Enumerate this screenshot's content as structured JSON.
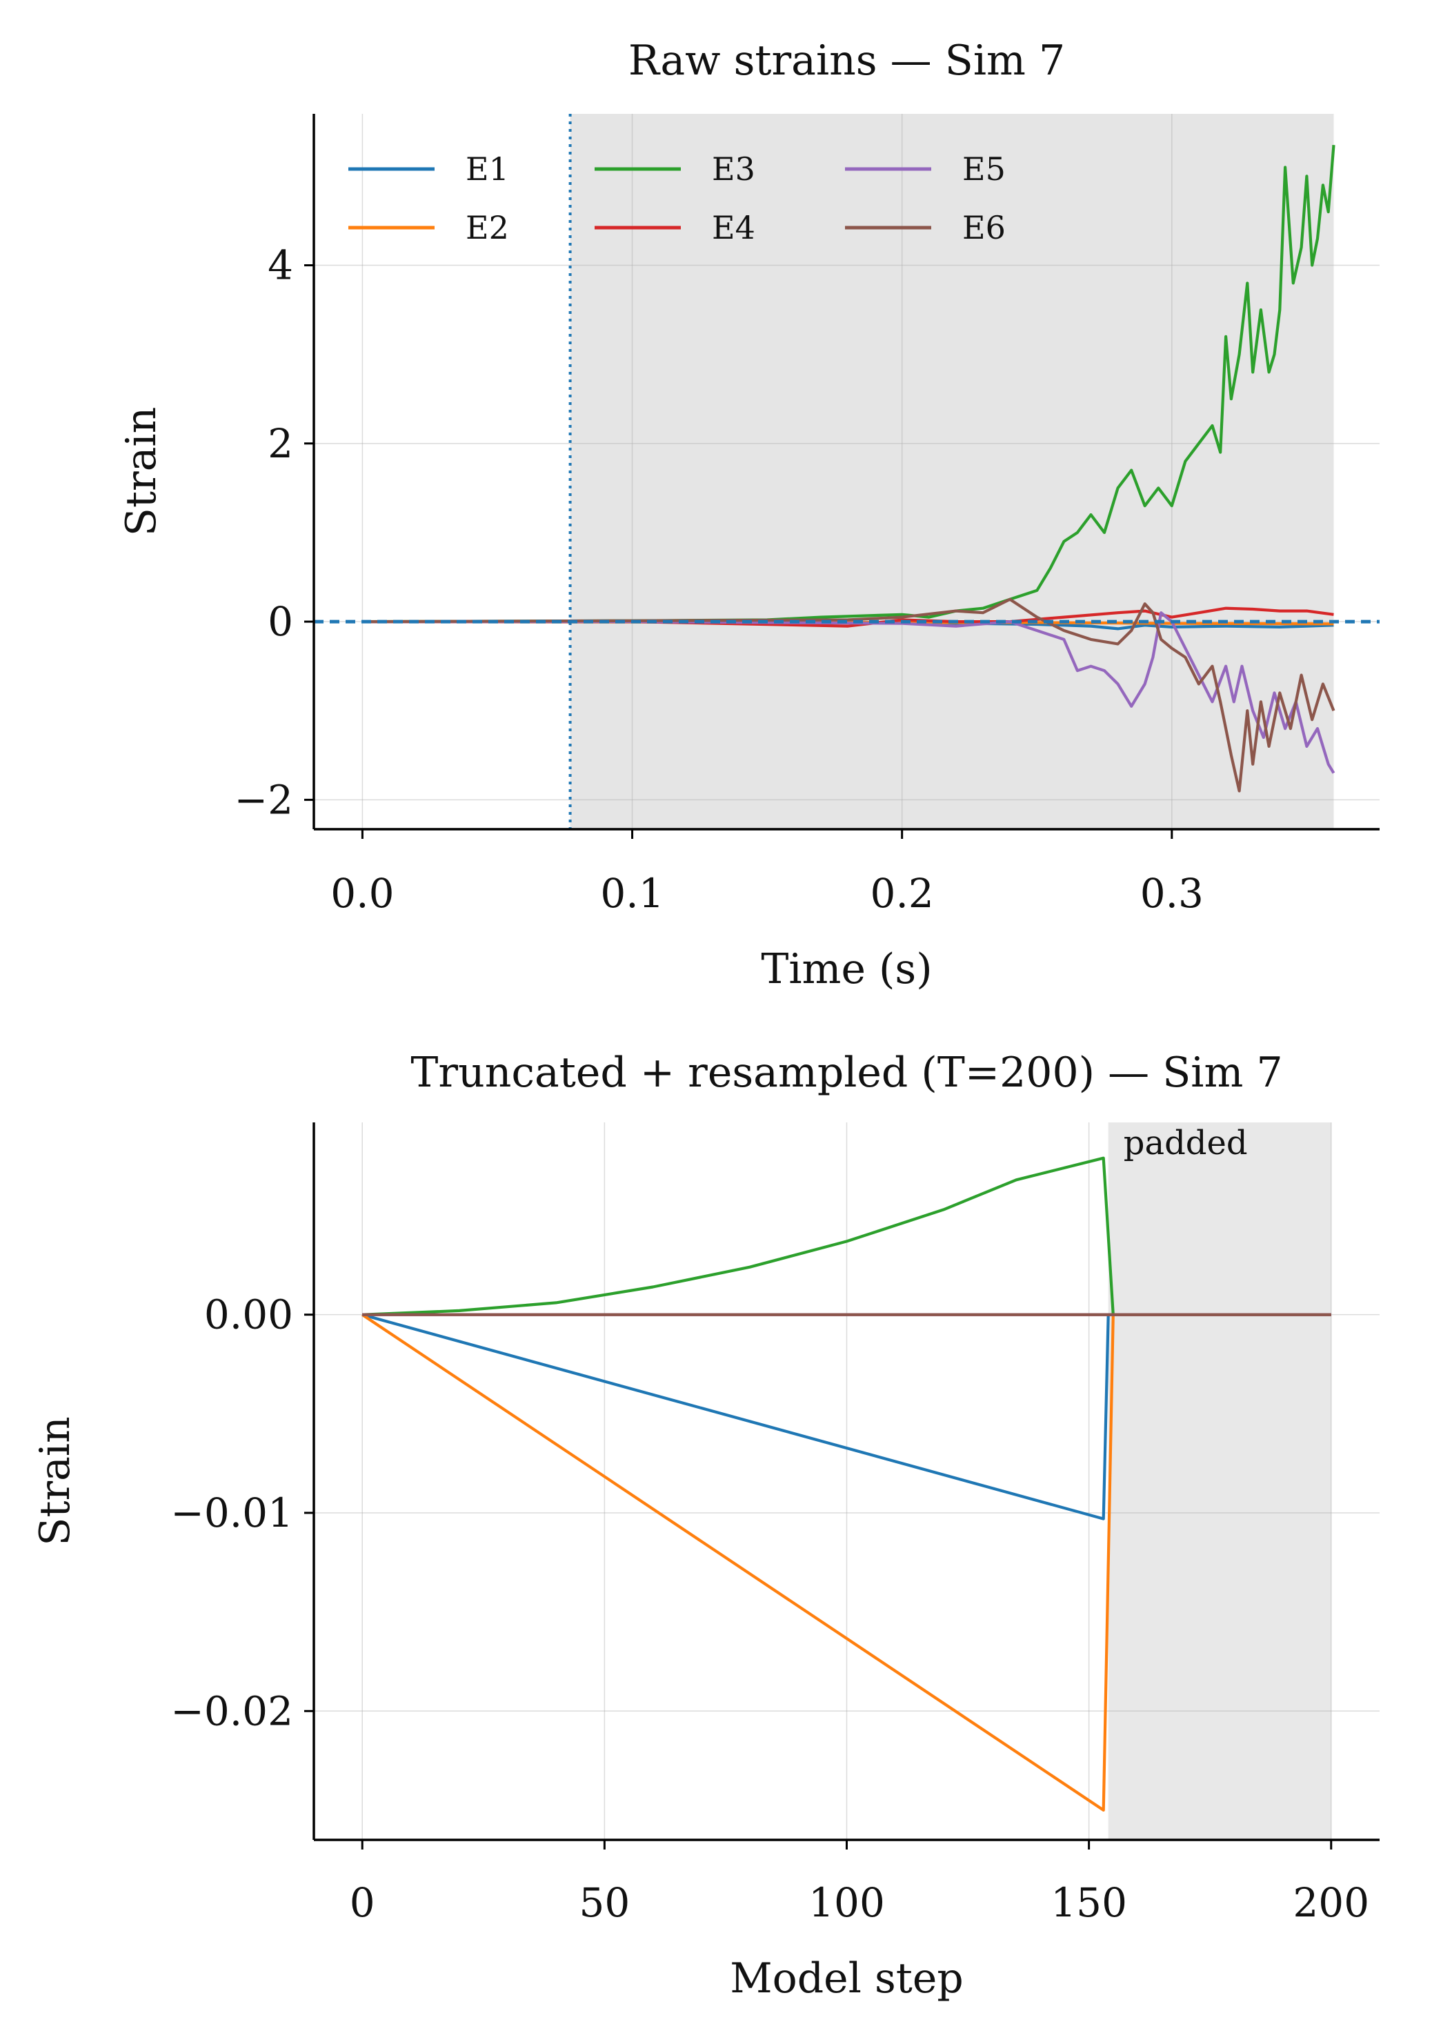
{
  "chart_data": [
    {
      "type": "line",
      "title": "Raw strains — Sim 7",
      "xlabel": "Time (s)",
      "ylabel": "Strain",
      "xlim": [
        -0.018,
        0.377
      ],
      "ylim": [
        -2.33,
        5.7
      ],
      "xticks": [
        0.0,
        0.1,
        0.2,
        0.3
      ],
      "xtick_labels": [
        "0.0",
        "0.1",
        "0.2",
        "0.3"
      ],
      "yticks": [
        -2,
        0,
        2,
        4
      ],
      "ytick_labels": [
        "−2",
        "0",
        "2",
        "4"
      ],
      "grid": true,
      "legend_position": "upper-left",
      "legend_columns": 3,
      "shaded_region": {
        "x": [
          0.077,
          0.36
        ],
        "color": "#e5e5e5"
      },
      "vertical_marker": {
        "x": 0.077,
        "style": "dotted",
        "color": "#1f77b4"
      },
      "horizontal_marker": {
        "y": 0,
        "style": "dashed",
        "color": "#1f77b4"
      },
      "series": [
        {
          "name": "E1",
          "color": "#1f77b4",
          "x": [
            0,
            0.1,
            0.2,
            0.25,
            0.27,
            0.28,
            0.29,
            0.3,
            0.32,
            0.34,
            0.36
          ],
          "y": [
            0,
            -0.002,
            -0.01,
            -0.03,
            -0.05,
            -0.08,
            -0.04,
            -0.06,
            -0.05,
            -0.06,
            -0.04
          ]
        },
        {
          "name": "E2",
          "color": "#ff7f0e",
          "x": [
            0,
            0.1,
            0.2,
            0.25,
            0.3,
            0.36
          ],
          "y": [
            0,
            -0.005,
            -0.01,
            -0.01,
            -0.02,
            -0.025
          ]
        },
        {
          "name": "E3",
          "color": "#2ca02c",
          "x": [
            0,
            0.1,
            0.15,
            0.17,
            0.2,
            0.21,
            0.22,
            0.23,
            0.24,
            0.25,
            0.255,
            0.26,
            0.265,
            0.27,
            0.275,
            0.28,
            0.285,
            0.29,
            0.295,
            0.3,
            0.305,
            0.31,
            0.315,
            0.318,
            0.32,
            0.322,
            0.325,
            0.328,
            0.33,
            0.333,
            0.336,
            0.338,
            0.34,
            0.342,
            0.345,
            0.348,
            0.35,
            0.352,
            0.354,
            0.356,
            0.358,
            0.36
          ],
          "y": [
            0,
            0.01,
            0.02,
            0.05,
            0.08,
            0.05,
            0.12,
            0.15,
            0.25,
            0.35,
            0.6,
            0.9,
            1.0,
            1.2,
            1.0,
            1.5,
            1.7,
            1.3,
            1.5,
            1.3,
            1.8,
            2.0,
            2.2,
            1.9,
            3.2,
            2.5,
            3.0,
            3.8,
            2.8,
            3.5,
            2.8,
            3.0,
            3.5,
            5.1,
            3.8,
            4.2,
            5.0,
            4.0,
            4.3,
            4.9,
            4.6,
            5.35
          ]
        },
        {
          "name": "E4",
          "color": "#d62728",
          "x": [
            0,
            0.1,
            0.18,
            0.2,
            0.22,
            0.24,
            0.26,
            0.28,
            0.29,
            0.3,
            0.31,
            0.32,
            0.33,
            0.34,
            0.35,
            0.36
          ],
          "y": [
            0,
            0.0,
            -0.05,
            0.02,
            0.0,
            0.0,
            0.05,
            0.1,
            0.12,
            0.05,
            0.1,
            0.15,
            0.14,
            0.12,
            0.12,
            0.08
          ]
        },
        {
          "name": "E5",
          "color": "#9467bd",
          "x": [
            0,
            0.1,
            0.2,
            0.22,
            0.24,
            0.25,
            0.26,
            0.265,
            0.27,
            0.275,
            0.28,
            0.285,
            0.29,
            0.293,
            0.296,
            0.3,
            0.305,
            0.31,
            0.315,
            0.32,
            0.323,
            0.326,
            0.33,
            0.334,
            0.338,
            0.342,
            0.346,
            0.35,
            0.354,
            0.358,
            0.36
          ],
          "y": [
            0,
            0.0,
            -0.02,
            -0.05,
            0.0,
            -0.1,
            -0.2,
            -0.55,
            -0.5,
            -0.55,
            -0.7,
            -0.95,
            -0.7,
            -0.4,
            0.1,
            0.0,
            -0.3,
            -0.6,
            -0.9,
            -0.5,
            -0.9,
            -0.5,
            -1.0,
            -1.3,
            -0.8,
            -1.2,
            -0.9,
            -1.4,
            -1.2,
            -1.6,
            -1.7
          ]
        },
        {
          "name": "E6",
          "color": "#8c564b",
          "x": [
            0,
            0.1,
            0.18,
            0.2,
            0.22,
            0.23,
            0.24,
            0.25,
            0.26,
            0.27,
            0.28,
            0.285,
            0.29,
            0.293,
            0.296,
            0.3,
            0.305,
            0.31,
            0.315,
            0.318,
            0.32,
            0.322,
            0.325,
            0.328,
            0.33,
            0.333,
            0.336,
            0.34,
            0.344,
            0.348,
            0.352,
            0.356,
            0.36
          ],
          "y": [
            0,
            0.01,
            0.02,
            0.05,
            0.12,
            0.1,
            0.25,
            0.05,
            -0.1,
            -0.2,
            -0.25,
            -0.1,
            0.2,
            0.1,
            -0.2,
            -0.3,
            -0.4,
            -0.7,
            -0.5,
            -0.9,
            -1.2,
            -1.5,
            -1.9,
            -1.0,
            -1.6,
            -0.9,
            -1.4,
            -0.8,
            -1.2,
            -0.6,
            -1.1,
            -0.7,
            -1.0
          ]
        }
      ]
    },
    {
      "type": "line",
      "title": "Truncated + resampled (T=200) — Sim 7",
      "xlabel": "Model step",
      "ylabel": "Strain",
      "xlim": [
        -10,
        210
      ],
      "ylim": [
        -0.0265,
        0.0097
      ],
      "xticks": [
        0,
        50,
        100,
        150,
        200
      ],
      "xtick_labels": [
        "0",
        "50",
        "100",
        "150",
        "200"
      ],
      "yticks": [
        -0.02,
        -0.01,
        0.0
      ],
      "ytick_labels": [
        "−0.02",
        "−0.01",
        "0.00"
      ],
      "grid": true,
      "shaded_region": {
        "x": [
          154,
          200
        ],
        "color": "#e8e8e8"
      },
      "annotation": "padded",
      "series": [
        {
          "color": "#1f77b4",
          "x": [
            0,
            153,
            154,
            200
          ],
          "y": [
            0,
            -0.0103,
            0,
            0
          ]
        },
        {
          "color": "#ff7f0e",
          "x": [
            0,
            153,
            155,
            200
          ],
          "y": [
            0,
            -0.025,
            0,
            0
          ]
        },
        {
          "color": "#2ca02c",
          "x": [
            0,
            20,
            40,
            60,
            80,
            100,
            120,
            135,
            153,
            155,
            200
          ],
          "y": [
            0,
            0.0002,
            0.0006,
            0.0014,
            0.0024,
            0.0037,
            0.0053,
            0.0068,
            0.0079,
            0,
            0
          ]
        },
        {
          "color": "#d62728",
          "x": [
            0,
            200
          ],
          "y": [
            0,
            0
          ]
        },
        {
          "color": "#9467bd",
          "x": [
            0,
            200
          ],
          "y": [
            0,
            0
          ]
        },
        {
          "color": "#8c564b",
          "x": [
            0,
            200
          ],
          "y": [
            0,
            0
          ]
        }
      ]
    }
  ]
}
